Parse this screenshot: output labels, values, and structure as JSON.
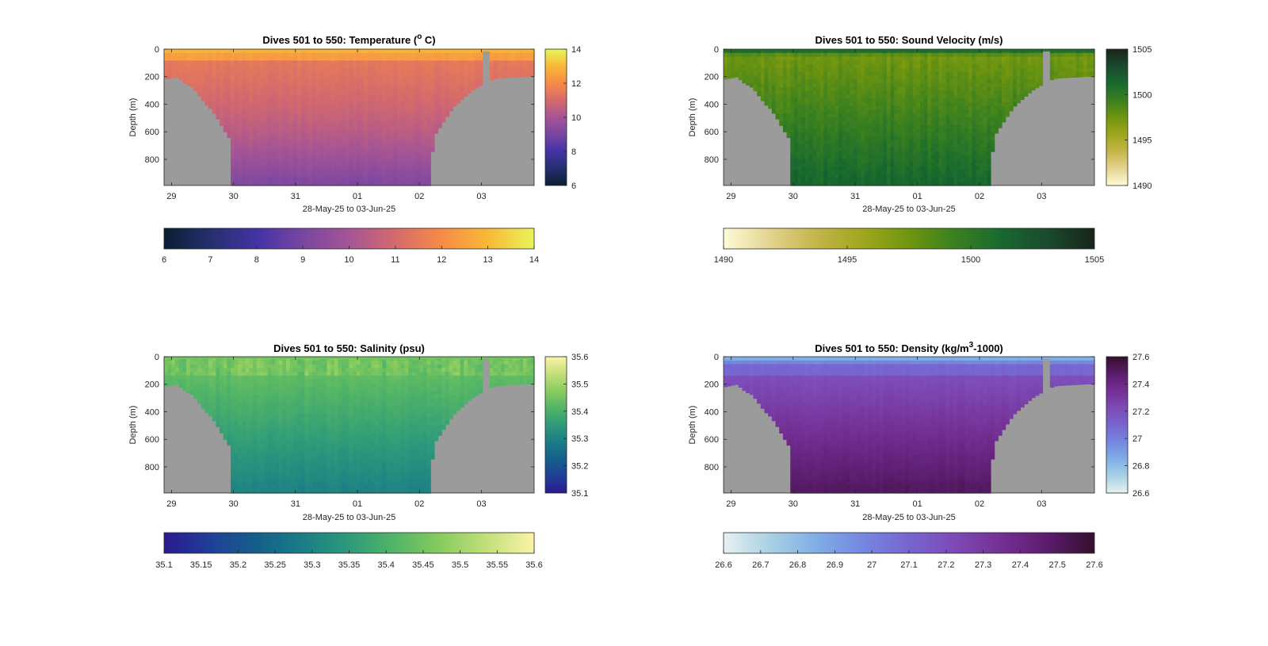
{
  "chart_data": [
    {
      "type": "heatmap",
      "variable": "temperature",
      "title_prefix": "Dives 501 to 550: Temperature (",
      "title_sup": "o",
      "title_suffix": " C)",
      "xlabel": "28-May-25 to 03-Jun-25",
      "ylabel": "Depth (m)",
      "x_ticks": [
        "29",
        "30",
        "31",
        "01",
        "02",
        "03"
      ],
      "y_ticks": [
        "0",
        "200",
        "400",
        "600",
        "800"
      ],
      "ylim": [
        0,
        990
      ],
      "clim": [
        6,
        14
      ],
      "colorbar_ticks": [
        "6",
        "8",
        "10",
        "12",
        "14"
      ],
      "hcolorbar_ticks": [
        "6",
        "7",
        "8",
        "9",
        "10",
        "11",
        "12",
        "13",
        "14"
      ],
      "colormap": [
        "#0b1e33",
        "#24306e",
        "#4432a4",
        "#7946a2",
        "#a55495",
        "#d56a6c",
        "#f68b47",
        "#f8b837",
        "#e9f45a"
      ]
    },
    {
      "type": "heatmap",
      "variable": "sound_velocity",
      "title_prefix": "Dives 501 to 550: Sound Velocity (m/s)",
      "title_sup": "",
      "title_suffix": "",
      "xlabel": "28-May-25 to 03-Jun-25",
      "ylabel": "Depth (m)",
      "x_ticks": [
        "29",
        "30",
        "31",
        "01",
        "02",
        "03"
      ],
      "y_ticks": [
        "0",
        "200",
        "400",
        "600",
        "800"
      ],
      "ylim": [
        0,
        990
      ],
      "clim": [
        1490,
        1505
      ],
      "colorbar_ticks": [
        "1490",
        "1495",
        "1500",
        "1505"
      ],
      "hcolorbar_ticks": [
        "1490",
        "1495",
        "1500",
        "1505"
      ],
      "colormap": [
        "#fefbd6",
        "#e3d38f",
        "#c4b54a",
        "#9fa61c",
        "#6f9510",
        "#3a8020",
        "#17692f",
        "#1a4a2e",
        "#182419"
      ]
    },
    {
      "type": "heatmap",
      "variable": "salinity",
      "title_prefix": "Dives 501 to 550: Salinity (psu)",
      "title_sup": "",
      "title_suffix": "",
      "xlabel": "28-May-25 to 03-Jun-25",
      "ylabel": "Depth (m)",
      "x_ticks": [
        "29",
        "30",
        "31",
        "01",
        "02",
        "03"
      ],
      "y_ticks": [
        "0",
        "200",
        "400",
        "600",
        "800"
      ],
      "ylim": [
        0,
        990
      ],
      "clim": [
        35.1,
        35.6
      ],
      "colorbar_ticks": [
        "35.1",
        "35.2",
        "35.3",
        "35.4",
        "35.5",
        "35.6"
      ],
      "hcolorbar_ticks": [
        "35.1",
        "35.15",
        "35.2",
        "35.25",
        "35.3",
        "35.35",
        "35.4",
        "35.45",
        "35.5",
        "35.55",
        "35.6"
      ],
      "colormap": [
        "#2a1a8f",
        "#1f3f97",
        "#145f8c",
        "#1b7d86",
        "#2e9a7a",
        "#53b566",
        "#89cc5e",
        "#c3e07c",
        "#fbf3a6"
      ]
    },
    {
      "type": "heatmap",
      "variable": "density",
      "title_prefix": "Dives 501 to 550: Density (kg/m",
      "title_sup": "3",
      "title_suffix": "-1000)",
      "xlabel": "28-May-25 to 03-Jun-25",
      "ylabel": "Depth (m)",
      "x_ticks": [
        "29",
        "30",
        "31",
        "01",
        "02",
        "03"
      ],
      "y_ticks": [
        "0",
        "200",
        "400",
        "600",
        "800"
      ],
      "ylim": [
        0,
        990
      ],
      "clim": [
        26.6,
        27.6
      ],
      "colorbar_ticks": [
        "26.6",
        "26.8",
        "27",
        "27.2",
        "27.4",
        "27.6"
      ],
      "hcolorbar_ticks": [
        "26.6",
        "26.7",
        "26.8",
        "26.9",
        "27",
        "27.1",
        "27.2",
        "27.3",
        "27.4",
        "27.5",
        "27.6"
      ],
      "colormap": [
        "#e6f1f1",
        "#a9d0e4",
        "#80aee6",
        "#7587e0",
        "#7865cf",
        "#7d4ab6",
        "#742f94",
        "#5b1c6c",
        "#33102d"
      ]
    }
  ]
}
